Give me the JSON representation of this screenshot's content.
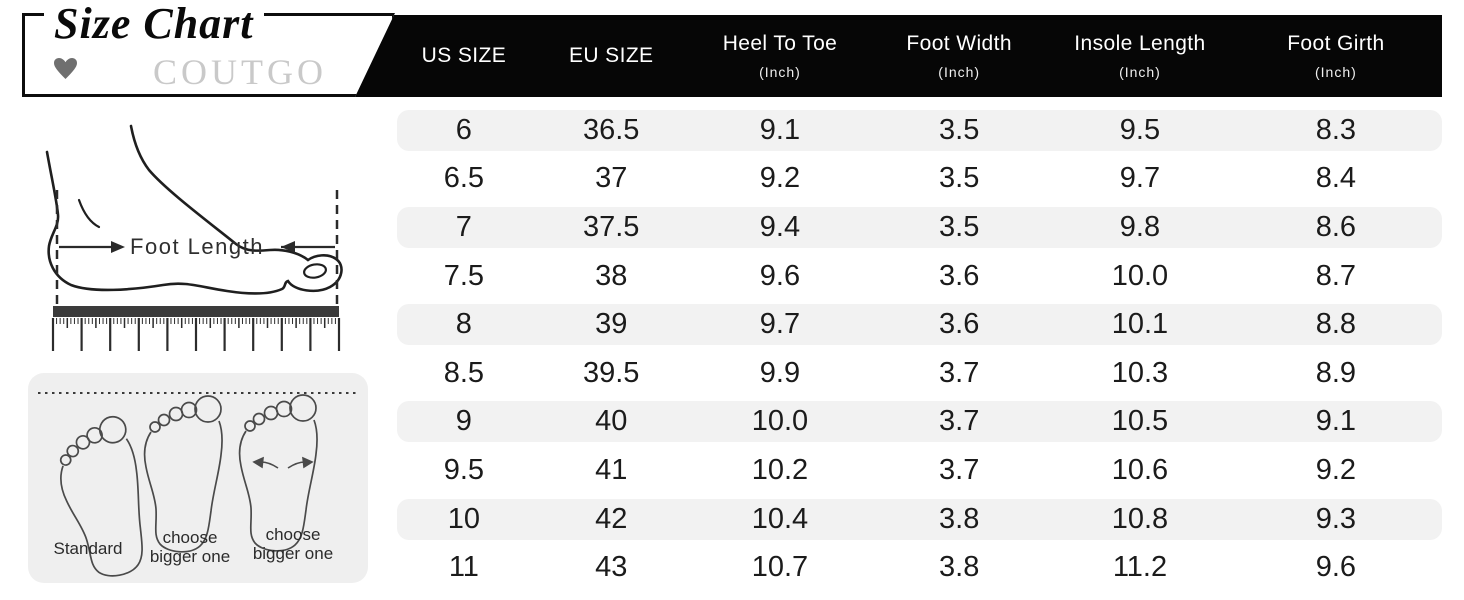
{
  "header": {
    "title": "Size Chart",
    "brand": "COUTGO"
  },
  "table": {
    "columns": [
      {
        "label": "US SIZE",
        "sub": ""
      },
      {
        "label": "EU SIZE",
        "sub": ""
      },
      {
        "label": "Heel To Toe",
        "sub": "(Inch)"
      },
      {
        "label": "Foot Width",
        "sub": "(Inch)"
      },
      {
        "label": "Insole Length",
        "sub": "(Inch)"
      },
      {
        "label": "Foot Girth",
        "sub": "(Inch)"
      }
    ]
  },
  "chart_data": {
    "type": "table",
    "title": "Size Chart",
    "columns": [
      "US SIZE",
      "EU SIZE",
      "Heel To Toe (Inch)",
      "Foot Width (Inch)",
      "Insole Length (Inch)",
      "Foot Girth (Inch)"
    ],
    "rows": [
      [
        "6",
        "36.5",
        "9.1",
        "3.5",
        "9.5",
        "8.3"
      ],
      [
        "6.5",
        "37",
        "9.2",
        "3.5",
        "9.7",
        "8.4"
      ],
      [
        "7",
        "37.5",
        "9.4",
        "3.5",
        "9.8",
        "8.6"
      ],
      [
        "7.5",
        "38",
        "9.6",
        "3.6",
        "10.0",
        "8.7"
      ],
      [
        "8",
        "39",
        "9.7",
        "3.6",
        "10.1",
        "8.8"
      ],
      [
        "8.5",
        "39.5",
        "9.9",
        "3.7",
        "10.3",
        "8.9"
      ],
      [
        "9",
        "40",
        "10.0",
        "3.7",
        "10.5",
        "9.1"
      ],
      [
        "9.5",
        "41",
        "10.2",
        "3.7",
        "10.6",
        "9.2"
      ],
      [
        "10",
        "42",
        "10.4",
        "3.8",
        "10.8",
        "9.3"
      ],
      [
        "11",
        "43",
        "10.7",
        "3.8",
        "11.2",
        "9.6"
      ]
    ]
  },
  "measure_diagram": {
    "label": "Foot Length"
  },
  "fit_guide": {
    "labels": [
      "Standard",
      "choose bigger one",
      "choose bigger one"
    ]
  },
  "colors": {
    "band": "#060606",
    "stripe": "#f2f2f2",
    "panel": "#efefef",
    "brand_text": "#c9c9c9",
    "heart": "#6f6f6f",
    "ink": "#1b1b1b"
  }
}
